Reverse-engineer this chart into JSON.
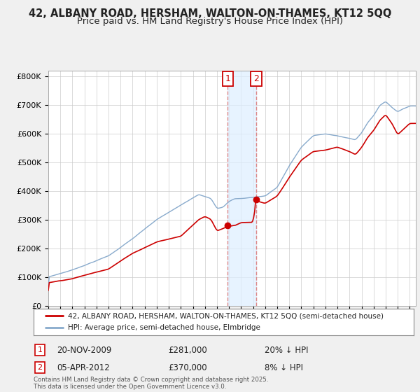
{
  "title": "42, ALBANY ROAD, HERSHAM, WALTON-ON-THAMES, KT12 5QQ",
  "subtitle": "Price paid vs. HM Land Registry's House Price Index (HPI)",
  "title_fontsize": 10.5,
  "subtitle_fontsize": 9.5,
  "ytick_labels": [
    "£0",
    "£100K",
    "£200K",
    "£300K",
    "£400K",
    "£500K",
    "£600K",
    "£700K",
    "£800K"
  ],
  "yticks": [
    0,
    100000,
    200000,
    300000,
    400000,
    500000,
    600000,
    700000,
    800000
  ],
  "xlim_start": 1995.0,
  "xlim_end": 2025.5,
  "ylim_min": 0,
  "ylim_max": 820000,
  "property_color": "#cc0000",
  "hpi_color": "#88aacc",
  "shade_color": "#ddeeff",
  "vline_color": "#dd8888",
  "transaction1_date": 2009.9,
  "transaction2_date": 2012.25,
  "transaction1_price": 281000,
  "transaction2_price": 370000,
  "legend_property": "42, ALBANY ROAD, HERSHAM, WALTON-ON-THAMES, KT12 5QQ (semi-detached house)",
  "legend_hpi": "HPI: Average price, semi-detached house, Elmbridge",
  "bg_color": "#f0f0f0",
  "plot_bg_color": "#ffffff",
  "grid_color": "#cccccc",
  "footnote": "Contains HM Land Registry data © Crown copyright and database right 2025.\nThis data is licensed under the Open Government Licence v3.0."
}
